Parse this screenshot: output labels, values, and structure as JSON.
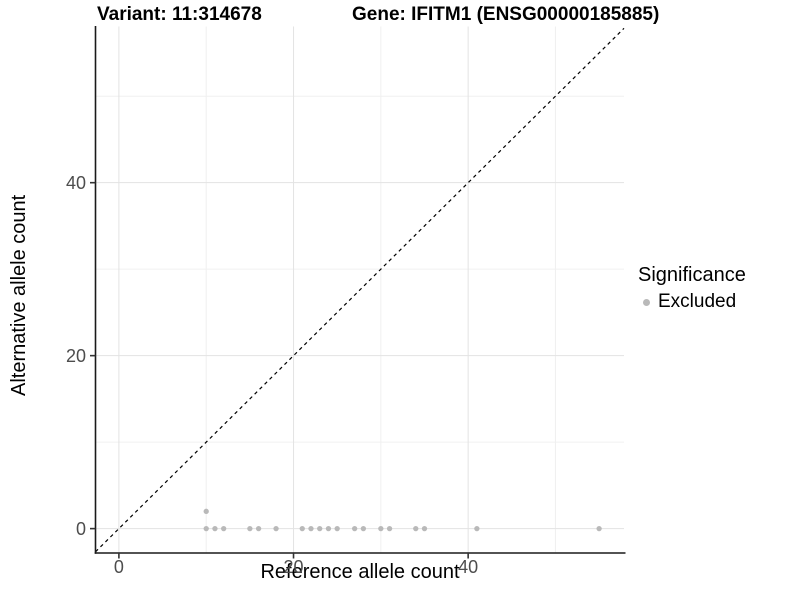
{
  "titles": {
    "variant": "Variant: 11:314678",
    "gene": "Gene: IFITM1 (ENSG00000185885)"
  },
  "axes": {
    "x": {
      "label": "Reference allele count",
      "ticks": [
        "0",
        "20",
        "40"
      ]
    },
    "y": {
      "label": "Alternative allele count",
      "ticks": [
        "0",
        "20",
        "40"
      ]
    }
  },
  "legend": {
    "title": "Significance",
    "items": [
      {
        "label": "Excluded",
        "color": "#b9b9b9"
      }
    ]
  },
  "colors": {
    "background": "#ffffff",
    "point": "#b9b9b9",
    "grid_major": "#e3e3e3",
    "grid_minor": "#f0f0f0",
    "axis_line": "#1a1a1a",
    "tick_mark": "#333333",
    "tick_text": "#4d4d4d",
    "identity_line": "#000000"
  },
  "chart_data": {
    "type": "scatter",
    "title_left": "Variant: 11:314678",
    "title_right": "Gene: IFITM1 (ENSG00000185885)",
    "xlabel": "Reference allele count",
    "ylabel": "Alternative allele count",
    "xlim": [
      -2.68,
      57.85
    ],
    "ylim": [
      -2.82,
      58.06
    ],
    "x_major_ticks": [
      0,
      20,
      40
    ],
    "y_major_ticks": [
      0,
      20,
      40
    ],
    "x_minor_gridlines": [
      10,
      30,
      50
    ],
    "y_minor_gridlines": [
      10,
      30,
      50
    ],
    "grid": true,
    "legend_position": "right",
    "identity_line": {
      "type": "abline",
      "slope": 1,
      "intercept": 0,
      "style": "dashed"
    },
    "series": [
      {
        "name": "Excluded",
        "color": "#b9b9b9",
        "points": [
          [
            10,
            0
          ],
          [
            10,
            2
          ],
          [
            11,
            0
          ],
          [
            12,
            0
          ],
          [
            15,
            0
          ],
          [
            16,
            0
          ],
          [
            18,
            0
          ],
          [
            21,
            0
          ],
          [
            22,
            0
          ],
          [
            23,
            0
          ],
          [
            24,
            0
          ],
          [
            25,
            0
          ],
          [
            27,
            0
          ],
          [
            28,
            0
          ],
          [
            30,
            0
          ],
          [
            31,
            0
          ],
          [
            34,
            0
          ],
          [
            35,
            0
          ],
          [
            41,
            0
          ],
          [
            55,
            0
          ]
        ]
      }
    ]
  }
}
